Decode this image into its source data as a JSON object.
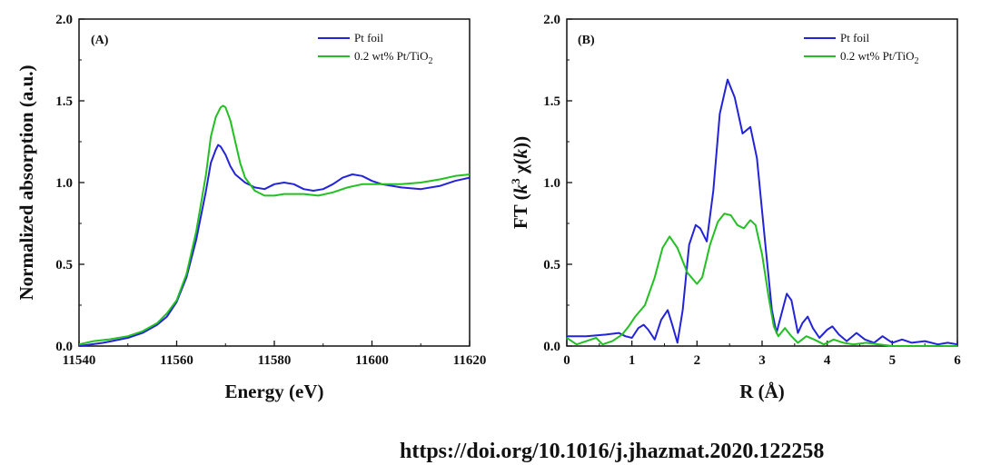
{
  "chart_data": [
    {
      "panel": "(A)",
      "type": "line",
      "xlabel": "Energy (eV)",
      "ylabel": "Normalized absorption (a.u.)",
      "xlim": [
        11540,
        11620
      ],
      "ylim": [
        0.0,
        2.0
      ],
      "xticks": [
        11540,
        11560,
        11580,
        11600,
        11620
      ],
      "yticks": [
        "0.0",
        "0.5",
        "1.0",
        "1.5",
        "2.0"
      ],
      "legend_position": "top-right",
      "series": [
        {
          "name": "Pt foil",
          "color": "#2323d8",
          "points": [
            [
              11540,
              0.0
            ],
            [
              11545,
              0.02
            ],
            [
              11550,
              0.05
            ],
            [
              11553,
              0.08
            ],
            [
              11556,
              0.13
            ],
            [
              11558,
              0.18
            ],
            [
              11560,
              0.27
            ],
            [
              11562,
              0.42
            ],
            [
              11564,
              0.65
            ],
            [
              11566,
              0.95
            ],
            [
              11567,
              1.12
            ],
            [
              11568,
              1.2
            ],
            [
              11568.5,
              1.23
            ],
            [
              11569,
              1.22
            ],
            [
              11570,
              1.17
            ],
            [
              11571,
              1.1
            ],
            [
              11572,
              1.05
            ],
            [
              11574,
              1.0
            ],
            [
              11576,
              0.97
            ],
            [
              11578,
              0.96
            ],
            [
              11580,
              0.99
            ],
            [
              11582,
              1.0
            ],
            [
              11584,
              0.99
            ],
            [
              11586,
              0.96
            ],
            [
              11588,
              0.95
            ],
            [
              11590,
              0.96
            ],
            [
              11592,
              0.99
            ],
            [
              11594,
              1.03
            ],
            [
              11596,
              1.05
            ],
            [
              11598,
              1.04
            ],
            [
              11600,
              1.01
            ],
            [
              11602,
              0.99
            ],
            [
              11606,
              0.97
            ],
            [
              11610,
              0.96
            ],
            [
              11614,
              0.98
            ],
            [
              11617,
              1.01
            ],
            [
              11620,
              1.03
            ]
          ]
        },
        {
          "name": "0.2 wt% Pt/TiO2",
          "color": "#22c022",
          "points": [
            [
              11540,
              0.01
            ],
            [
              11543,
              0.03
            ],
            [
              11546,
              0.04
            ],
            [
              11550,
              0.06
            ],
            [
              11553,
              0.09
            ],
            [
              11556,
              0.14
            ],
            [
              11558,
              0.2
            ],
            [
              11560,
              0.28
            ],
            [
              11562,
              0.44
            ],
            [
              11564,
              0.7
            ],
            [
              11566,
              1.05
            ],
            [
              11567,
              1.28
            ],
            [
              11568,
              1.4
            ],
            [
              11569,
              1.46
            ],
            [
              11569.5,
              1.47
            ],
            [
              11570,
              1.46
            ],
            [
              11571,
              1.38
            ],
            [
              11572,
              1.25
            ],
            [
              11573,
              1.12
            ],
            [
              11574,
              1.03
            ],
            [
              11576,
              0.95
            ],
            [
              11578,
              0.92
            ],
            [
              11580,
              0.92
            ],
            [
              11582,
              0.93
            ],
            [
              11586,
              0.93
            ],
            [
              11589,
              0.92
            ],
            [
              11592,
              0.94
            ],
            [
              11595,
              0.97
            ],
            [
              11598,
              0.99
            ],
            [
              11602,
              0.99
            ],
            [
              11606,
              0.99
            ],
            [
              11610,
              1.0
            ],
            [
              11614,
              1.02
            ],
            [
              11617,
              1.04
            ],
            [
              11620,
              1.05
            ]
          ]
        }
      ]
    },
    {
      "panel": "(B)",
      "type": "line",
      "xlabel": "R (Å)",
      "ylabel": "FT (k³ χ(k))",
      "xlim": [
        0,
        6
      ],
      "ylim": [
        0.0,
        2.0
      ],
      "xticks": [
        0,
        1,
        2,
        3,
        4,
        5,
        6
      ],
      "yticks": [
        "0.0",
        "0.5",
        "1.0",
        "1.5",
        "2.0"
      ],
      "legend_position": "top-right",
      "series": [
        {
          "name": "Pt foil",
          "color": "#2323d8",
          "points": [
            [
              0,
              0.06
            ],
            [
              0.3,
              0.06
            ],
            [
              0.6,
              0.07
            ],
            [
              0.8,
              0.08
            ],
            [
              0.9,
              0.06
            ],
            [
              1.0,
              0.05
            ],
            [
              1.1,
              0.11
            ],
            [
              1.18,
              0.13
            ],
            [
              1.25,
              0.1
            ],
            [
              1.35,
              0.04
            ],
            [
              1.45,
              0.16
            ],
            [
              1.55,
              0.22
            ],
            [
              1.62,
              0.13
            ],
            [
              1.7,
              0.02
            ],
            [
              1.78,
              0.22
            ],
            [
              1.88,
              0.62
            ],
            [
              1.98,
              0.74
            ],
            [
              2.05,
              0.72
            ],
            [
              2.15,
              0.64
            ],
            [
              2.25,
              0.95
            ],
            [
              2.35,
              1.42
            ],
            [
              2.47,
              1.63
            ],
            [
              2.58,
              1.52
            ],
            [
              2.7,
              1.3
            ],
            [
              2.82,
              1.34
            ],
            [
              2.92,
              1.15
            ],
            [
              3.05,
              0.62
            ],
            [
              3.15,
              0.22
            ],
            [
              3.22,
              0.08
            ],
            [
              3.3,
              0.2
            ],
            [
              3.38,
              0.32
            ],
            [
              3.45,
              0.28
            ],
            [
              3.55,
              0.08
            ],
            [
              3.62,
              0.14
            ],
            [
              3.7,
              0.18
            ],
            [
              3.78,
              0.11
            ],
            [
              3.88,
              0.05
            ],
            [
              4.0,
              0.1
            ],
            [
              4.08,
              0.12
            ],
            [
              4.18,
              0.07
            ],
            [
              4.3,
              0.03
            ],
            [
              4.45,
              0.08
            ],
            [
              4.58,
              0.04
            ],
            [
              4.72,
              0.02
            ],
            [
              4.85,
              0.06
            ],
            [
              5.0,
              0.02
            ],
            [
              5.15,
              0.04
            ],
            [
              5.3,
              0.02
            ],
            [
              5.5,
              0.03
            ],
            [
              5.7,
              0.01
            ],
            [
              5.85,
              0.02
            ],
            [
              6.0,
              0.01
            ]
          ]
        },
        {
          "name": "0.2 wt% Pt/TiO2",
          "color": "#22c022",
          "points": [
            [
              0,
              0.05
            ],
            [
              0.15,
              0.01
            ],
            [
              0.3,
              0.03
            ],
            [
              0.45,
              0.05
            ],
            [
              0.55,
              0.01
            ],
            [
              0.7,
              0.03
            ],
            [
              0.85,
              0.07
            ],
            [
              0.95,
              0.12
            ],
            [
              1.05,
              0.18
            ],
            [
              1.2,
              0.25
            ],
            [
              1.35,
              0.42
            ],
            [
              1.47,
              0.6
            ],
            [
              1.58,
              0.67
            ],
            [
              1.7,
              0.6
            ],
            [
              1.85,
              0.45
            ],
            [
              2.0,
              0.38
            ],
            [
              2.08,
              0.42
            ],
            [
              2.2,
              0.62
            ],
            [
              2.32,
              0.76
            ],
            [
              2.42,
              0.81
            ],
            [
              2.52,
              0.8
            ],
            [
              2.62,
              0.74
            ],
            [
              2.72,
              0.72
            ],
            [
              2.82,
              0.77
            ],
            [
              2.9,
              0.74
            ],
            [
              3.0,
              0.56
            ],
            [
              3.1,
              0.3
            ],
            [
              3.18,
              0.12
            ],
            [
              3.25,
              0.06
            ],
            [
              3.35,
              0.11
            ],
            [
              3.45,
              0.06
            ],
            [
              3.55,
              0.02
            ],
            [
              3.68,
              0.06
            ],
            [
              3.8,
              0.04
            ],
            [
              3.95,
              0.01
            ],
            [
              4.1,
              0.04
            ],
            [
              4.25,
              0.02
            ],
            [
              4.4,
              0.01
            ],
            [
              4.6,
              0.02
            ],
            [
              4.8,
              0.01
            ],
            [
              5.0,
              0.0
            ],
            [
              5.5,
              0.0
            ],
            [
              6.0,
              0.0
            ]
          ]
        }
      ]
    }
  ],
  "legend": {
    "a": {
      "label1": "Pt foil",
      "label2": "0.2 wt% Pt/TiO",
      "label2_sub": "2"
    },
    "b": {
      "label1": "Pt foil",
      "label2": "0.2 wt%  Pt/TiO",
      "label2_sub": "2"
    }
  },
  "doi": "https://doi.org/10.1016/j.jhazmat.2020.122258"
}
